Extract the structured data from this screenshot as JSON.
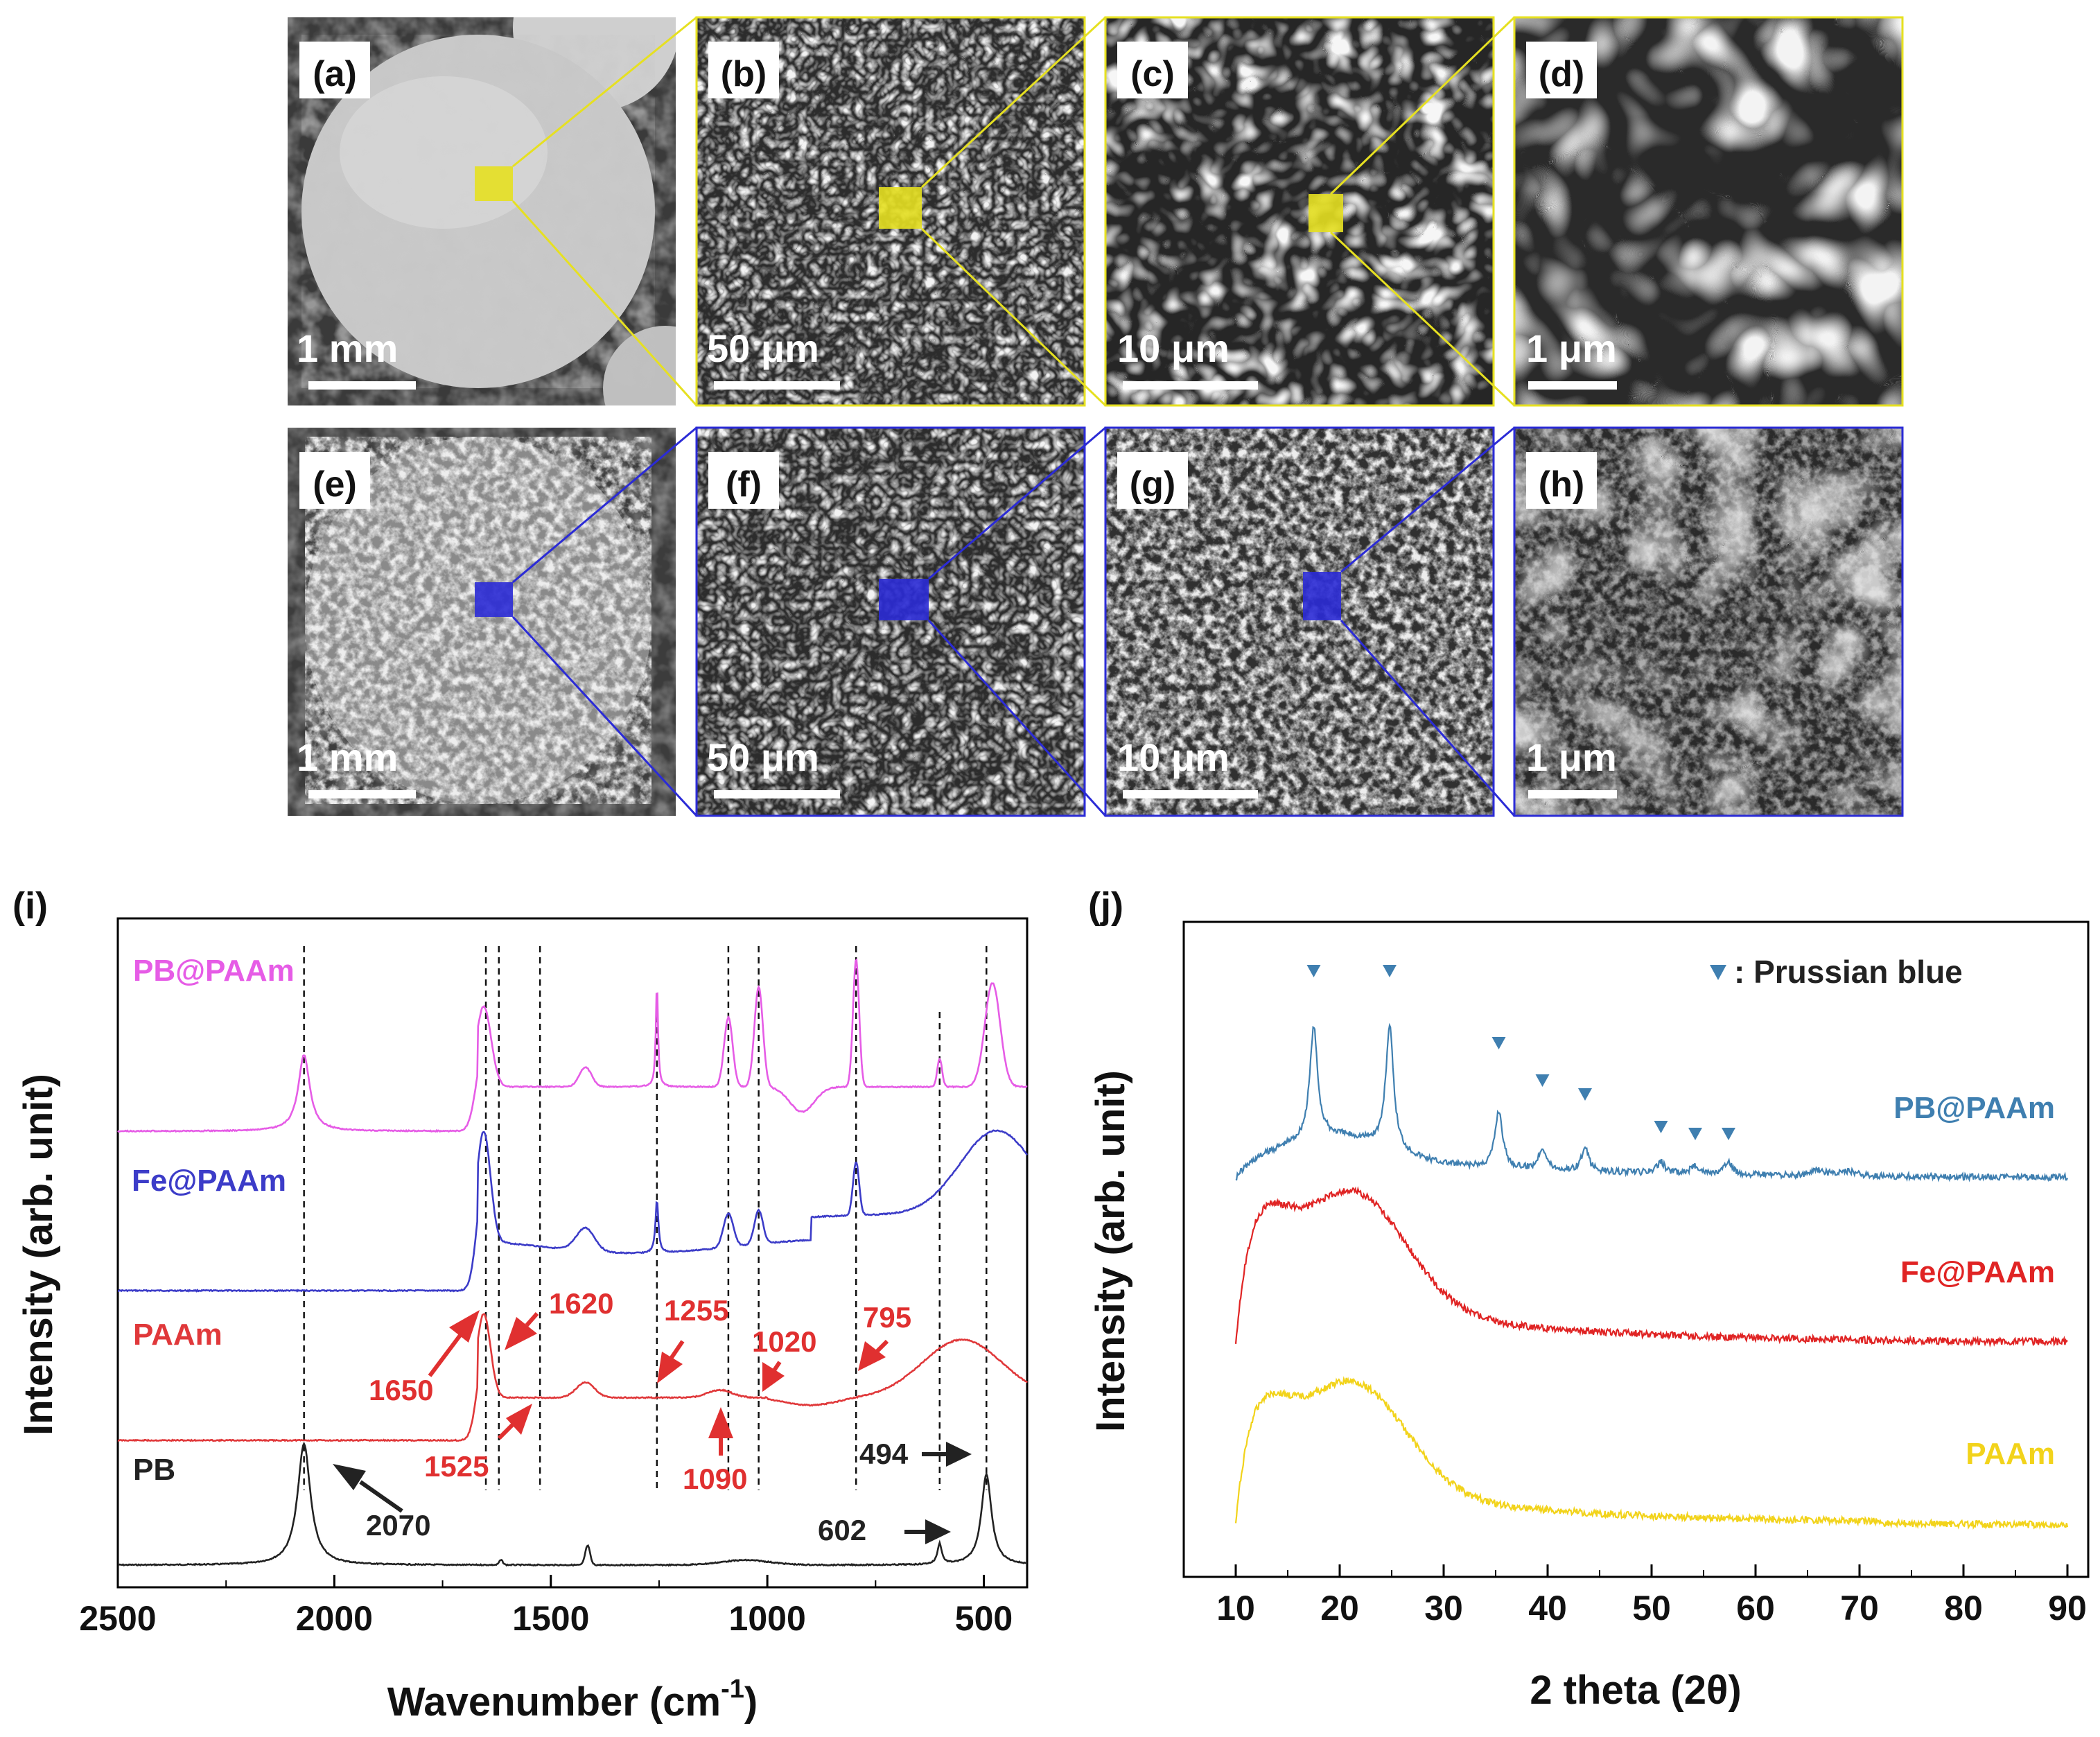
{
  "sem": {
    "panels": [
      {
        "label": "(a)",
        "scale": "1 mm",
        "row": "pb"
      },
      {
        "label": "(b)",
        "scale": "50 μm",
        "row": "pb"
      },
      {
        "label": "(c)",
        "scale": "10 μm",
        "row": "pb"
      },
      {
        "label": "(d)",
        "scale": "1 μm",
        "row": "pb"
      },
      {
        "label": "(e)",
        "scale": "1 mm",
        "row": "fe"
      },
      {
        "label": "(f)",
        "scale": "50 μm",
        "row": "fe"
      },
      {
        "label": "(g)",
        "scale": "10 μm",
        "row": "fe"
      },
      {
        "label": "(h)",
        "scale": "1 μm",
        "row": "fe"
      }
    ],
    "highlight_colors": {
      "top": "#e6e021",
      "bottom": "#2b2bd6"
    }
  },
  "chart_data": [
    {
      "id": "i",
      "panel_label": "(i)",
      "type": "line",
      "title": "",
      "xlabel": "Wavenumber (cm",
      "xlabel_sup": "-1",
      "xlabel_tail": ")",
      "ylabel": "Intensity (arb. unit)",
      "xlim": [
        2500,
        400
      ],
      "xticks": [
        2500,
        2000,
        1500,
        1000,
        500
      ],
      "series": [
        {
          "name": "PB@PAAm",
          "color": "#e65ce6"
        },
        {
          "name": "Fe@PAAm",
          "color": "#3c3cc8"
        },
        {
          "name": "PAAm",
          "color": "#e0383a"
        },
        {
          "name": "PB",
          "color": "#222222"
        }
      ],
      "dashed_lines": [
        2070,
        1650,
        1620,
        1525,
        1255,
        1090,
        1020,
        795,
        602,
        494
      ],
      "annotations": [
        {
          "text": "1650",
          "color": "#e03030"
        },
        {
          "text": "1620",
          "color": "#e03030"
        },
        {
          "text": "1525",
          "color": "#e03030"
        },
        {
          "text": "1255",
          "color": "#e03030"
        },
        {
          "text": "1090",
          "color": "#e03030"
        },
        {
          "text": "1020",
          "color": "#e03030"
        },
        {
          "text": "795",
          "color": "#e03030"
        },
        {
          "text": "2070",
          "color": "#222222"
        },
        {
          "text": "602",
          "color": "#222222"
        },
        {
          "text": "494",
          "color": "#222222"
        }
      ]
    },
    {
      "id": "j",
      "panel_label": "(j)",
      "type": "line",
      "title": "",
      "xlabel": "2 theta (2θ)",
      "ylabel": "Intensity (arb. unit)",
      "xlim": [
        5,
        92
      ],
      "xticks": [
        10,
        20,
        30,
        40,
        50,
        60,
        70,
        80,
        90
      ],
      "legend_text": ": Prussian blue",
      "series": [
        {
          "name": "PB@PAAm",
          "color": "#3f7fb0"
        },
        {
          "name": "Fe@PAAm",
          "color": "#e02424"
        },
        {
          "name": "PAAm",
          "color": "#f2d31b"
        }
      ],
      "pb_peaks_2theta": [
        17.5,
        24.8,
        35.3,
        39.5,
        43.6,
        50.9,
        54.2,
        57.4
      ]
    }
  ]
}
